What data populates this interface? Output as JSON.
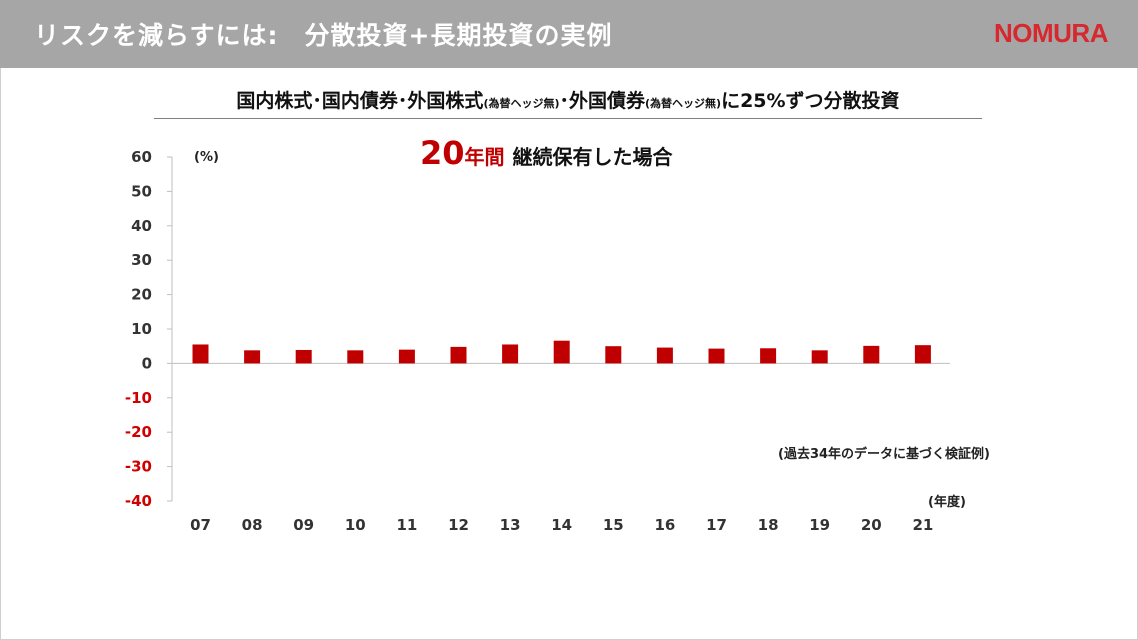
{
  "header": {
    "title": "リスクを減らすには:　分散投資+長期投資の実例",
    "logo": "NOMURA"
  },
  "subtitle": {
    "part1": "国内株式･国内債券･外国株式",
    "hedge1": "(為替ヘッジ無)",
    "part2": "･外国債券",
    "hedge2": "(為替ヘッジ無)",
    "part3": "に25%ずつ分散投資"
  },
  "period": {
    "number": "20",
    "unit": "年間",
    "rest": "継続保有した場合"
  },
  "colors": {
    "bar": "#c00000",
    "negative_tick": "#d00000",
    "positive_tick": "#333333",
    "header_bg": "#a6a6a6",
    "brand": "#d7282f"
  },
  "chart_data": {
    "type": "bar",
    "categories": [
      "07",
      "08",
      "09",
      "10",
      "11",
      "12",
      "13",
      "14",
      "15",
      "16",
      "17",
      "18",
      "19",
      "20",
      "21"
    ],
    "values": [
      5.5,
      3.8,
      3.9,
      3.8,
      4.0,
      4.8,
      5.5,
      6.6,
      5.0,
      4.6,
      4.3,
      4.4,
      3.8,
      5.1,
      5.3
    ],
    "yunit": "(%)",
    "xunit": "(年度)",
    "ylim": [
      -40,
      60
    ],
    "yticks": [
      "60",
      "50",
      "40",
      "30",
      "20",
      "10",
      "0",
      "-10",
      "-20",
      "-30",
      "-40"
    ],
    "annotation": "(過去34年のデータに基づく検証例)",
    "grid": false,
    "legend": "none"
  }
}
